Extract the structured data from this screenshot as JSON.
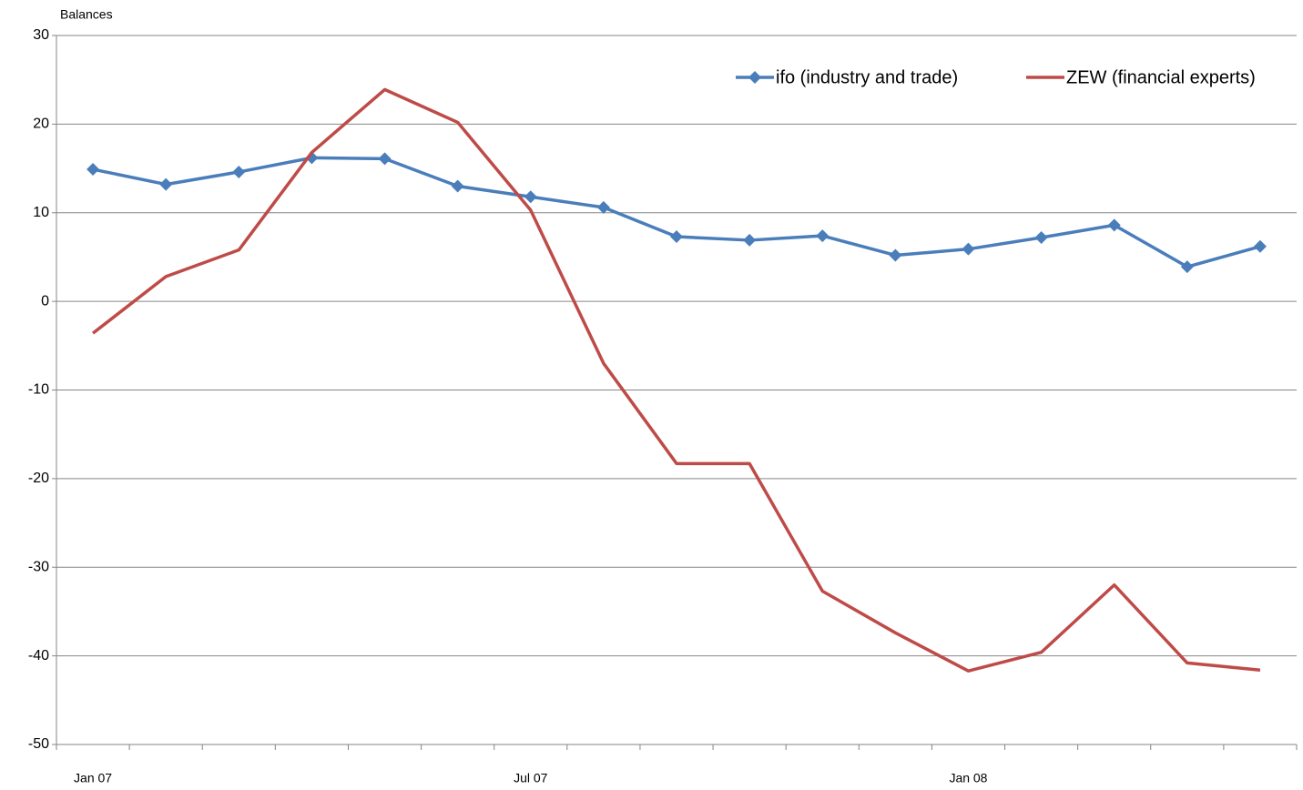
{
  "chart_data": {
    "type": "line",
    "y_label": "Balances",
    "categories": [
      "Jan 07",
      null,
      null,
      null,
      null,
      null,
      "Jul 07",
      null,
      null,
      null,
      null,
      null,
      "Jan 08",
      null,
      null,
      null,
      null
    ],
    "series": [
      {
        "name": "ifo (industry and trade)",
        "color": "#4a7ebb",
        "marker": "diamond",
        "values": [
          14.9,
          13.2,
          14.6,
          16.2,
          16.1,
          13.0,
          11.8,
          10.6,
          7.3,
          6.9,
          7.4,
          5.2,
          5.9,
          7.2,
          8.6,
          3.9,
          6.2
        ]
      },
      {
        "name": "ZEW (financial experts)",
        "color": "#be4b48",
        "marker": "none",
        "values": [
          -3.6,
          2.8,
          5.8,
          16.8,
          23.9,
          20.2,
          10.3,
          -7.0,
          -18.3,
          -18.3,
          -32.7,
          -37.4,
          -41.7,
          -39.6,
          -32.0,
          -40.8,
          -41.6
        ]
      }
    ],
    "ylim": [
      -50,
      30
    ],
    "yticks": [
      -50,
      -40,
      -30,
      -20,
      -10,
      0,
      10,
      20,
      30
    ],
    "grid": true,
    "legend": "top-right"
  }
}
